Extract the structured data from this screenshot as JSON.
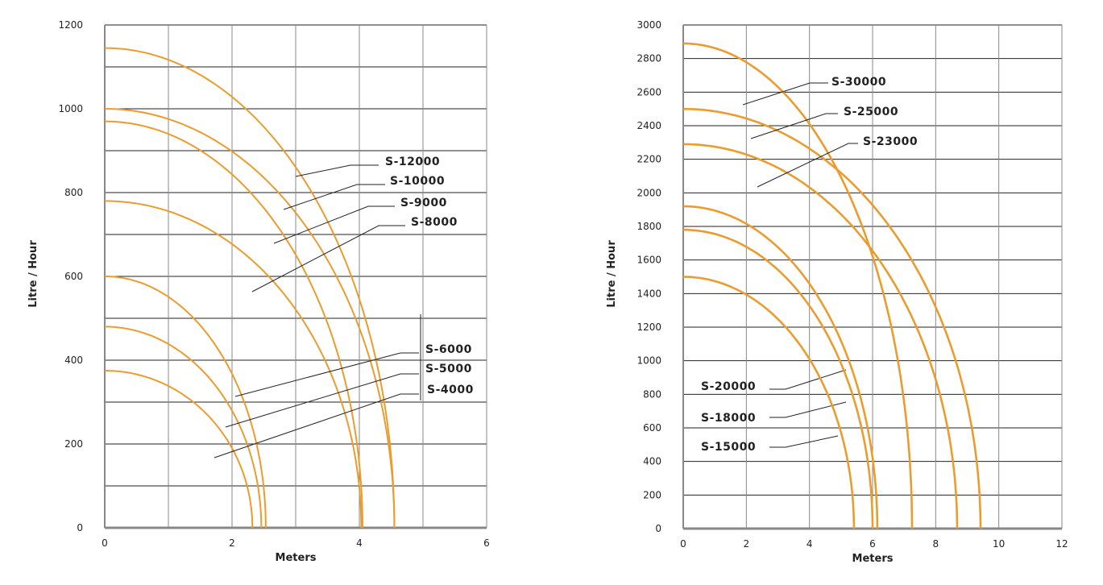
{
  "colors": {
    "curve": "#eb9c2f",
    "grid_h": "#222222",
    "grid_v": "#888888",
    "axis": "#888888"
  },
  "chart_data": [
    {
      "type": "line",
      "title": "",
      "xlabel": "Meters",
      "ylabel": "Litre  /  Hour",
      "xlim": [
        0,
        6
      ],
      "ylim": [
        0,
        1200
      ],
      "x_ticks": [
        0,
        2,
        4,
        6
      ],
      "y_ticks": [
        0,
        200,
        400,
        600,
        800,
        1000,
        1200
      ],
      "x_grid_step": 1,
      "y_grid_step": 100,
      "grid": true,
      "series": [
        {
          "name": "S-12000",
          "max_flow": 1145,
          "max_head": 4.55
        },
        {
          "name": "S-10000",
          "max_flow": 1000,
          "max_head": 4.55
        },
        {
          "name": "S-9000",
          "max_flow": 970,
          "max_head": 4.05
        },
        {
          "name": "S-8000",
          "max_flow": 780,
          "max_head": 4.03
        },
        {
          "name": "S-6000",
          "max_flow": 600,
          "max_head": 2.53
        },
        {
          "name": "S-5000",
          "max_flow": 480,
          "max_head": 2.46
        },
        {
          "name": "S-4000",
          "max_flow": 375,
          "max_head": 2.32
        }
      ]
    },
    {
      "type": "line",
      "title": "",
      "xlabel": "Meters",
      "ylabel": "Litre  /  Hour",
      "xlim": [
        0,
        12
      ],
      "ylim": [
        0,
        3000
      ],
      "x_ticks": [
        0,
        2,
        4,
        6,
        8,
        10,
        12
      ],
      "y_ticks": [
        0,
        200,
        400,
        600,
        800,
        1000,
        1200,
        1400,
        1600,
        1800,
        2000,
        2200,
        2400,
        2600,
        2800,
        3000
      ],
      "x_grid_step": 2,
      "y_grid_step": 200,
      "grid": true,
      "series": [
        {
          "name": "S-30000",
          "max_flow": 2890,
          "max_head": 7.25
        },
        {
          "name": "S-25000",
          "max_flow": 2500,
          "max_head": 9.42
        },
        {
          "name": "S-23000",
          "max_flow": 2290,
          "max_head": 8.68
        },
        {
          "name": "S-20000",
          "max_flow": 1920,
          "max_head": 6.15
        },
        {
          "name": "S-18000",
          "max_flow": 1780,
          "max_head": 6.0
        },
        {
          "name": "S-15000",
          "max_flow": 1500,
          "max_head": 5.41
        }
      ]
    }
  ]
}
